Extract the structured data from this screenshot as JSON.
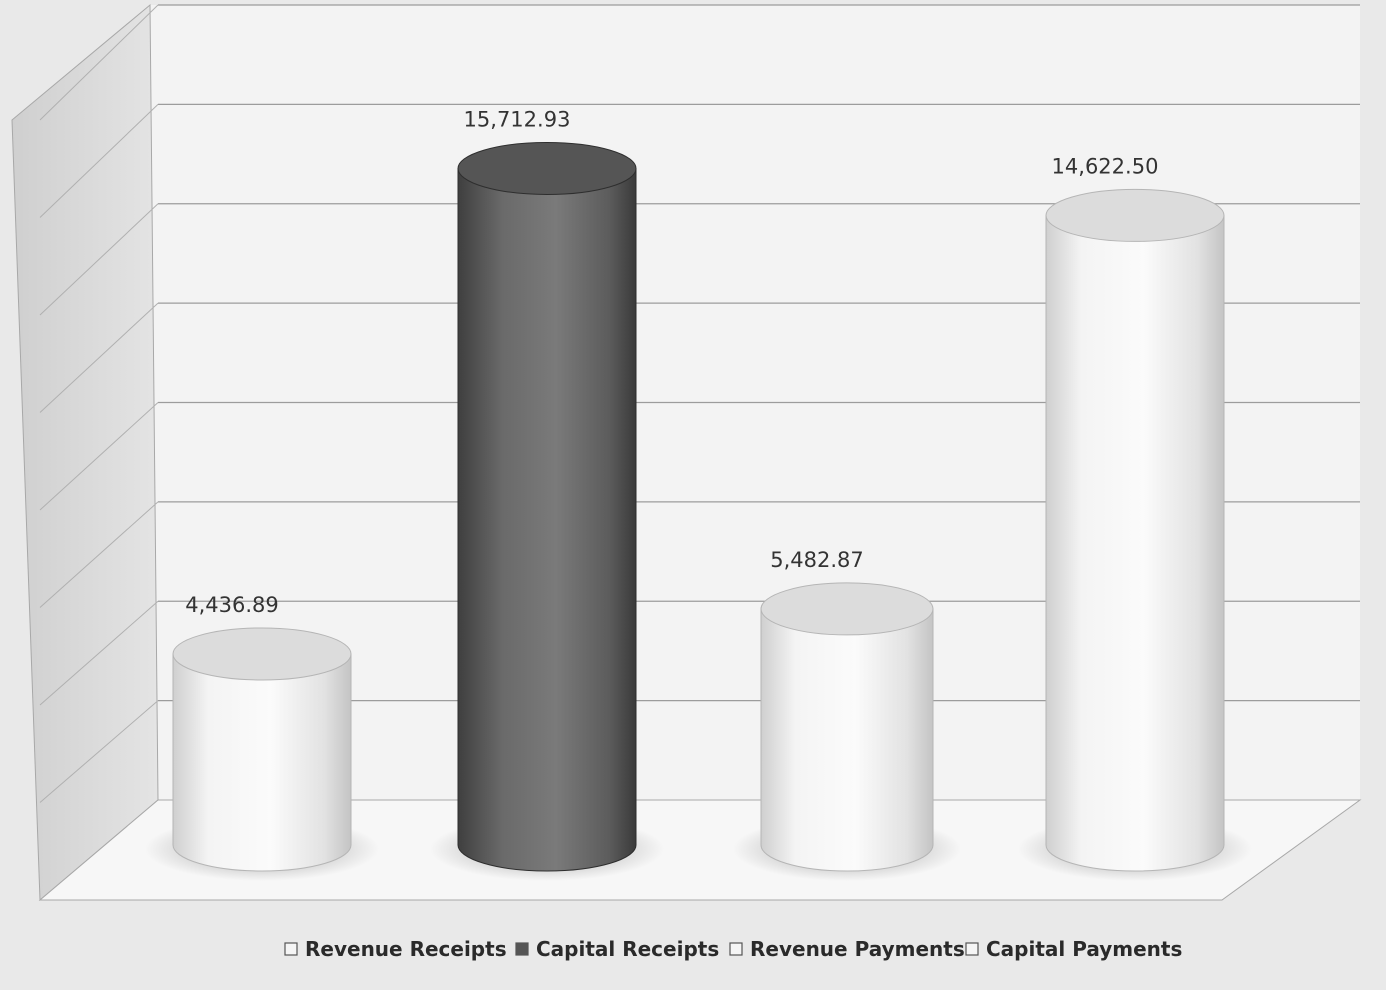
{
  "chart_data": {
    "type": "bar",
    "style": "3d-cylinder",
    "categories": [
      "Revenue Receipts",
      "Capital Receipts",
      "Revenue Payments",
      "Capital Payments"
    ],
    "values": [
      4436.89,
      15712.93,
      5482.87,
      14622.5
    ],
    "data_labels": [
      "4,436.89",
      "15,712.93",
      "5,482.87",
      "14,622.50"
    ],
    "series": [
      {
        "name": "Revenue Receipts",
        "value": 4436.89,
        "color": "#efefef"
      },
      {
        "name": "Capital Receipts",
        "value": 15712.93,
        "color": "#6d6d6d"
      },
      {
        "name": "Revenue Payments",
        "value": 5482.87,
        "color": "#efefef"
      },
      {
        "name": "Capital Payments",
        "value": 14622.5,
        "color": "#efefef"
      }
    ],
    "title": "",
    "xlabel": "",
    "ylabel": "",
    "ylim": [
      0,
      18000
    ],
    "grid": true,
    "legend_position": "bottom"
  }
}
